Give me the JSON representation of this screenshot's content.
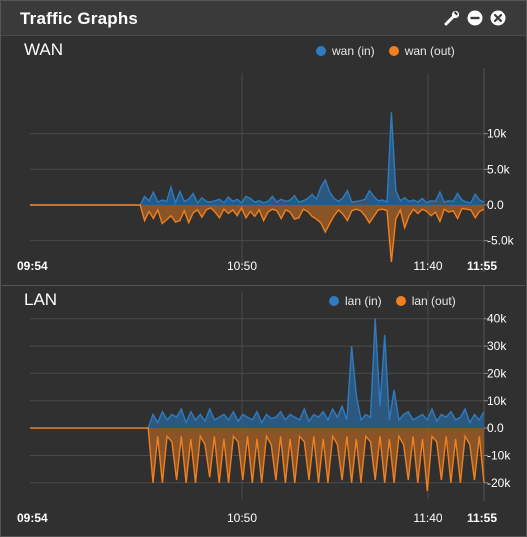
{
  "widget": {
    "title": "Traffic Graphs",
    "icons": [
      "wrench-icon",
      "minimize-icon",
      "close-icon"
    ]
  },
  "colors": {
    "in": "#2f7bbf",
    "out": "#f08020",
    "in_fill": "#2b5f8e",
    "out_fill": "#9a5a24"
  },
  "chart_data": [
    {
      "type": "area",
      "title": "WAN",
      "series": [
        {
          "name": "wan (in)",
          "color": "#2f7bbf",
          "values": [
            0,
            0,
            0,
            0,
            0,
            0,
            0,
            0,
            0,
            0,
            0,
            0,
            0,
            0,
            0,
            0,
            0,
            0,
            0,
            0,
            0,
            0,
            0,
            0,
            0,
            0,
            1200,
            600,
            1800,
            400,
            700,
            500,
            2500,
            300,
            1900,
            500,
            800,
            1600,
            300,
            1000,
            500,
            400,
            600,
            800,
            300,
            1100,
            500,
            800,
            300,
            1200,
            900,
            400,
            600,
            300,
            500,
            1200,
            400,
            800,
            500,
            700,
            1300,
            400,
            600,
            900,
            1500,
            800,
            2500,
            3500,
            1800,
            900,
            500,
            1000,
            2000,
            400,
            500,
            600,
            800,
            2000,
            1200,
            600,
            700,
            400,
            13000,
            2000,
            600,
            1000,
            500,
            700,
            400,
            900,
            300,
            600,
            500,
            1800,
            400,
            600,
            500,
            1600,
            700,
            400,
            300,
            1500,
            700,
            400
          ],
          "x_note": ""
        },
        {
          "name": "wan (out)",
          "color": "#f08020",
          "values": [
            0,
            0,
            0,
            0,
            0,
            0,
            0,
            0,
            0,
            0,
            0,
            0,
            0,
            0,
            0,
            0,
            0,
            0,
            0,
            0,
            0,
            0,
            0,
            0,
            0,
            0,
            -2200,
            -900,
            -1900,
            -700,
            -2600,
            -2100,
            -1500,
            -2400,
            -2200,
            -800,
            -2500,
            -1100,
            -700,
            -1700,
            -700,
            -400,
            -1000,
            -1800,
            -600,
            -1200,
            -700,
            -1500,
            -400,
            -1800,
            -900,
            -1600,
            -700,
            -2200,
            -1000,
            -600,
            -800,
            -1900,
            -700,
            -1000,
            -2000,
            -1800,
            -600,
            -900,
            -1600,
            -2000,
            -2500,
            -3800,
            -2600,
            -1500,
            -700,
            -1300,
            -2200,
            -800,
            -600,
            -800,
            -1500,
            -2500,
            -1600,
            -700,
            -600,
            -800,
            -8000,
            -2000,
            -700,
            -3200,
            -1500,
            -600,
            -1200,
            -600,
            -900,
            -1500,
            -1000,
            -2300,
            -600,
            -1000,
            -800,
            -1900,
            -500,
            -600,
            -700,
            -1800,
            -900,
            -600
          ]
        }
      ],
      "x_ticks": [
        "09:54",
        "10:50",
        "11:40",
        "11:55"
      ],
      "y_ticks": [
        "10k",
        "5.0k",
        "0.0",
        "-5.0k"
      ],
      "ylim": [
        -8000,
        15000
      ],
      "legend_position": "top-right"
    },
    {
      "type": "area",
      "title": "LAN",
      "series": [
        {
          "name": "lan (in)",
          "color": "#2f7bbf",
          "values": [
            0,
            0,
            0,
            0,
            0,
            0,
            0,
            0,
            0,
            0,
            0,
            0,
            0,
            0,
            0,
            0,
            0,
            0,
            0,
            0,
            0,
            0,
            0,
            0,
            0,
            0,
            5000,
            2000,
            6000,
            3000,
            5000,
            4000,
            7000,
            2000,
            6000,
            3000,
            5000,
            2500,
            7000,
            3000,
            4000,
            5000,
            3000,
            6000,
            2500,
            5000,
            4000,
            3000,
            6000,
            2000,
            5000,
            3500,
            4000,
            6000,
            3000,
            5000,
            4000,
            3000,
            7000,
            2500,
            5000,
            4000,
            6000,
            3000,
            7000,
            4000,
            8000,
            3000,
            30000,
            12000,
            3000,
            5000,
            4000,
            40000,
            8000,
            34000,
            3000,
            14000,
            3000,
            5000,
            6000,
            3000,
            4000,
            5000,
            3000,
            7000,
            2500,
            5000,
            4000,
            6000,
            3000,
            4000,
            7000,
            2000,
            5000,
            3000,
            6000
          ],
          "x_note": ""
        },
        {
          "name": "lan (out)",
          "color": "#f08020",
          "values": [
            0,
            0,
            0,
            0,
            0,
            0,
            0,
            0,
            0,
            0,
            0,
            0,
            0,
            0,
            0,
            0,
            0,
            0,
            0,
            0,
            0,
            0,
            0,
            0,
            0,
            0,
            -20000,
            -3000,
            -20000,
            -3000,
            -5000,
            -19000,
            -3000,
            -20000,
            -4000,
            -20000,
            -3000,
            -6000,
            -18000,
            -3000,
            -20000,
            -4000,
            -20000,
            -3000,
            -5000,
            -19000,
            -3000,
            -20000,
            -4000,
            -20000,
            -3000,
            -6000,
            -19000,
            -3000,
            -20000,
            -4000,
            -20000,
            -3000,
            -5000,
            -19000,
            -3000,
            -20000,
            -4000,
            -20000,
            -3000,
            -6000,
            -19000,
            -3000,
            -20000,
            -4000,
            -20000,
            -3000,
            -5000,
            -19000,
            -3000,
            -20000,
            -4000,
            -20000,
            -3000,
            -6000,
            -19000,
            -3000,
            -20000,
            -4000,
            -23000,
            -3000,
            -5000,
            -19000,
            -3000,
            -20000,
            -4000,
            -20000,
            -3000,
            -6000,
            -19000,
            -3000,
            -20000
          ]
        }
      ],
      "x_ticks": [
        "09:54",
        "10:50",
        "11:40",
        "11:55"
      ],
      "y_ticks": [
        "40k",
        "30k",
        "20k",
        "10k",
        "0.0",
        "-10k",
        "-20k"
      ],
      "ylim": [
        -23000,
        41000
      ],
      "legend_position": "top-right"
    }
  ]
}
